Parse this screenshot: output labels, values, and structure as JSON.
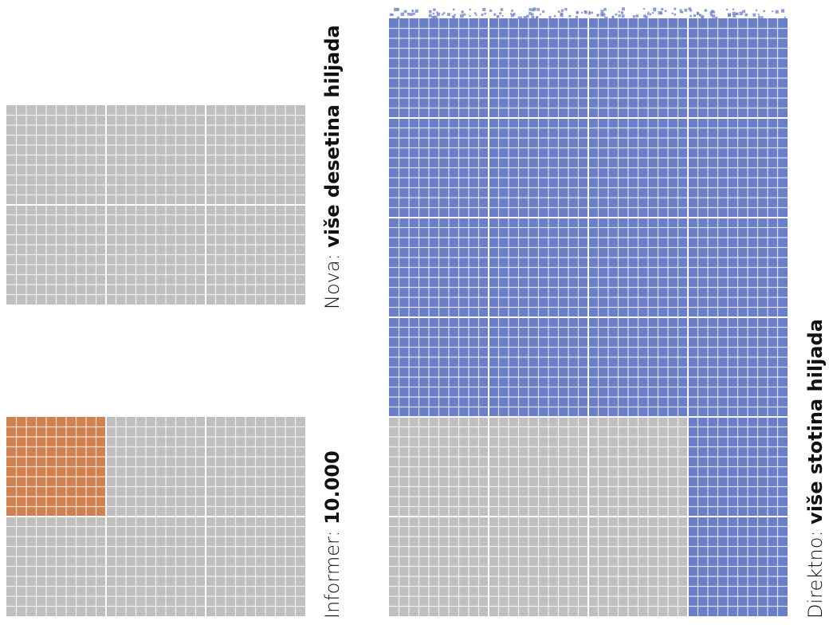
{
  "chart_data": {
    "type": "waffle",
    "unit": "each small square represents one unit of a shared scale",
    "colors": {
      "empty": "#bfbfbf",
      "grid_line": "#ffffff",
      "informer": "#d1804f",
      "direktno": "#6a7fc8"
    },
    "panels": [
      {
        "name": "Nova",
        "separator": ": ",
        "value_label": "više desetina hiljada",
        "filled_blocks": 0,
        "color_key": "empty"
      },
      {
        "name": "Informer",
        "separator": ": ",
        "value_label": "10.000",
        "filled_blocks": 1,
        "color_key": "informer"
      },
      {
        "name": "Direktno",
        "separator": ": ",
        "value_label": "više stotina hiljada",
        "filled_blocks": 22,
        "color_key": "direktno"
      }
    ]
  }
}
